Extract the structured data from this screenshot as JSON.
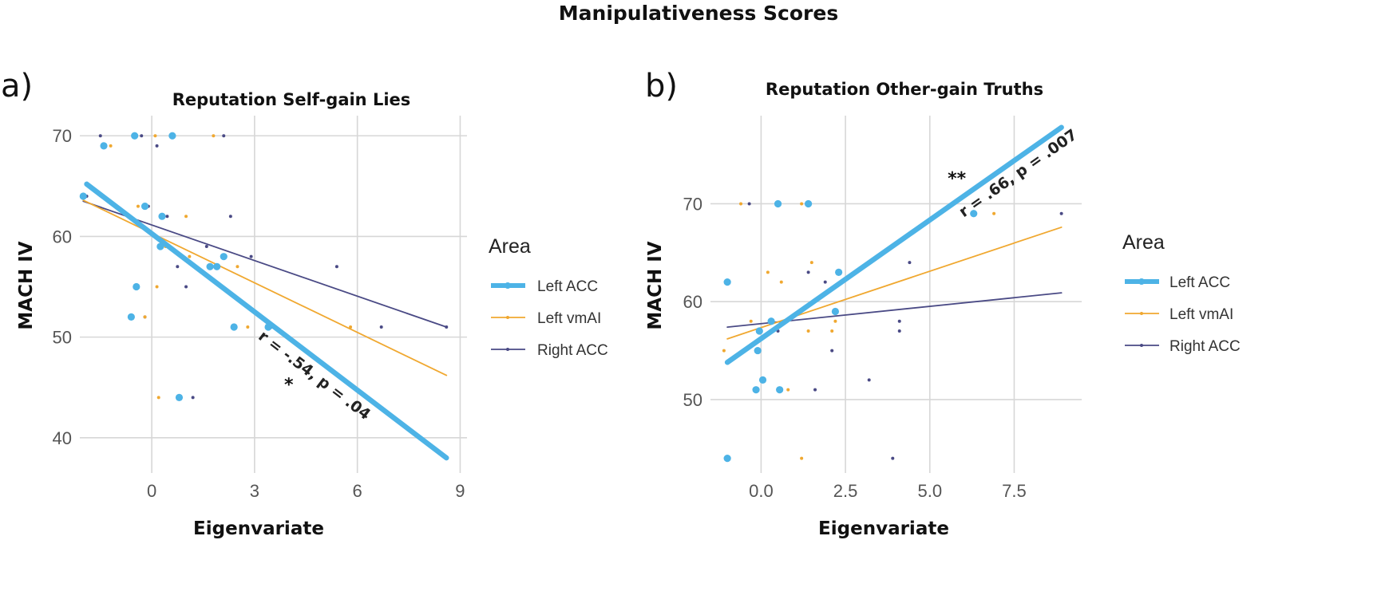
{
  "figure_title": "Manipulativeness Scores",
  "chart_data": [
    {
      "type": "scatter",
      "panel_label": "a)",
      "title": "Reputation Self-gain Lies",
      "xlabel": "Eigenvariate",
      "ylabel": "MACH IV",
      "xlim": [
        -2.1,
        9.2
      ],
      "ylim": [
        36.5,
        72
      ],
      "x_ticks": [
        0,
        3,
        6,
        9
      ],
      "x_tick_labels": [
        "0",
        "3",
        "6",
        "9"
      ],
      "y_ticks": [
        40,
        50,
        60,
        70
      ],
      "y_tick_labels": [
        "40",
        "50",
        "60",
        "70"
      ],
      "legend": {
        "title": "Area",
        "items": [
          "Left ACC",
          "Left vmAI",
          "Right ACC"
        ],
        "position": "right"
      },
      "series": [
        {
          "name": "Left ACC",
          "color": "#4db3e6",
          "points": [
            [
              -2.0,
              64
            ],
            [
              -1.4,
              69
            ],
            [
              -0.6,
              52
            ],
            [
              -0.5,
              70
            ],
            [
              -0.45,
              55
            ],
            [
              -0.2,
              63
            ],
            [
              0.25,
              59
            ],
            [
              0.3,
              62
            ],
            [
              0.6,
              70
            ],
            [
              0.8,
              44
            ],
            [
              1.7,
              57
            ],
            [
              1.9,
              57
            ],
            [
              2.1,
              58
            ],
            [
              2.4,
              51
            ],
            [
              3.4,
              51
            ]
          ],
          "fit": {
            "x": [
              -1.9,
              8.6
            ],
            "y": [
              65.2,
              38.0
            ]
          }
        },
        {
          "name": "Left vmAI",
          "color": "#f0a830",
          "points": [
            [
              -1.2,
              69
            ],
            [
              -0.4,
              63
            ],
            [
              -0.2,
              52
            ],
            [
              0.1,
              70
            ],
            [
              0.15,
              55
            ],
            [
              0.2,
              44
            ],
            [
              0.4,
              59
            ],
            [
              1.0,
              62
            ],
            [
              1.1,
              58
            ],
            [
              1.8,
              70
            ],
            [
              2.5,
              57
            ],
            [
              2.8,
              51
            ],
            [
              5.8,
              51
            ]
          ],
          "fit": {
            "x": [
              -2.0,
              8.6
            ],
            "y": [
              63.6,
              46.2
            ]
          }
        },
        {
          "name": "Right ACC",
          "color": "#4a4a85",
          "points": [
            [
              -1.9,
              64
            ],
            [
              -1.5,
              70
            ],
            [
              -0.3,
              70
            ],
            [
              -0.2,
              52
            ],
            [
              -0.1,
              63
            ],
            [
              0.15,
              69
            ],
            [
              0.45,
              62
            ],
            [
              0.75,
              57
            ],
            [
              1.0,
              55
            ],
            [
              1.2,
              44
            ],
            [
              1.6,
              59
            ],
            [
              2.1,
              70
            ],
            [
              2.3,
              62
            ],
            [
              2.9,
              58
            ],
            [
              3.5,
              51
            ],
            [
              5.4,
              57
            ],
            [
              6.7,
              51
            ],
            [
              8.6,
              51
            ]
          ],
          "fit": {
            "x": [
              -2.0,
              8.6
            ],
            "y": [
              63.5,
              51.0
            ]
          }
        }
      ],
      "annotation": {
        "text": "r = -.54, p = .04",
        "significance": "*",
        "series": "Left ACC"
      }
    },
    {
      "type": "scatter",
      "panel_label": "b)",
      "title": "Reputation Other-gain Truths",
      "xlabel": "Eigenvariate",
      "ylabel": "MACH IV",
      "xlim": [
        -1.5,
        9.5
      ],
      "ylim": [
        42.5,
        79
      ],
      "x_ticks": [
        0,
        2.5,
        5,
        7.5
      ],
      "x_tick_labels": [
        "0.0",
        "2.5",
        "5.0",
        "7.5"
      ],
      "y_ticks": [
        50,
        60,
        70
      ],
      "y_tick_labels": [
        "50",
        "60",
        "70"
      ],
      "legend": {
        "title": "Area",
        "items": [
          "Left ACC",
          "Left vmAI",
          "Right ACC"
        ],
        "position": "right"
      },
      "series": [
        {
          "name": "Left ACC",
          "color": "#4db3e6",
          "points": [
            [
              -1.0,
              62
            ],
            [
              -1.0,
              44
            ],
            [
              -0.15,
              51
            ],
            [
              -0.1,
              55
            ],
            [
              -0.05,
              57
            ],
            [
              0.05,
              52
            ],
            [
              0.3,
              58
            ],
            [
              0.5,
              70
            ],
            [
              0.55,
              51
            ],
            [
              1.4,
              70
            ],
            [
              2.2,
              59
            ],
            [
              2.3,
              63
            ],
            [
              6.3,
              69
            ]
          ],
          "fit": {
            "x": [
              -1.0,
              8.9
            ],
            "y": [
              53.8,
              77.8
            ]
          }
        },
        {
          "name": "Left vmAI",
          "color": "#f0a830",
          "points": [
            [
              -1.1,
              55
            ],
            [
              -0.6,
              70
            ],
            [
              -0.3,
              58
            ],
            [
              0.2,
              63
            ],
            [
              0.6,
              62
            ],
            [
              0.8,
              51
            ],
            [
              1.2,
              44
            ],
            [
              1.2,
              70
            ],
            [
              1.4,
              57
            ],
            [
              1.5,
              64
            ],
            [
              2.1,
              57
            ],
            [
              2.2,
              58
            ],
            [
              6.9,
              69
            ]
          ],
          "fit": {
            "x": [
              -1.0,
              8.9
            ],
            "y": [
              56.2,
              67.6
            ]
          }
        },
        {
          "name": "Right ACC",
          "color": "#4a4a85",
          "points": [
            [
              -0.35,
              70
            ],
            [
              0.0,
              57
            ],
            [
              0.5,
              57
            ],
            [
              1.4,
              63
            ],
            [
              1.6,
              51
            ],
            [
              1.9,
              62
            ],
            [
              2.1,
              55
            ],
            [
              3.2,
              52
            ],
            [
              3.9,
              44
            ],
            [
              4.1,
              57
            ],
            [
              4.1,
              58
            ],
            [
              4.4,
              64
            ],
            [
              8.9,
              69
            ]
          ],
          "fit": {
            "x": [
              -1.0,
              8.9
            ],
            "y": [
              57.4,
              60.9
            ]
          }
        }
      ],
      "annotation": {
        "text": "r = .66, p = .007",
        "significance": "**",
        "series": "Left ACC"
      }
    }
  ]
}
